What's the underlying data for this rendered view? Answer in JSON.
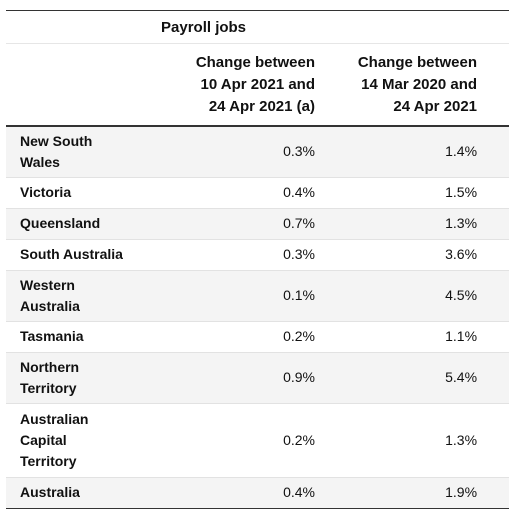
{
  "table": {
    "spanner": "Payroll jobs",
    "columns": [
      {
        "lines": [
          "Change between",
          "10 Apr 2021 and",
          "24 Apr 2021 (a)"
        ]
      },
      {
        "lines": [
          "Change between",
          "14 Mar 2020 and",
          "24 Apr 2021"
        ]
      }
    ],
    "rows": [
      {
        "state_lines": [
          "New South",
          "Wales"
        ],
        "v1": "0.3%",
        "v2": "1.4%"
      },
      {
        "state_lines": [
          "Victoria"
        ],
        "v1": "0.4%",
        "v2": "1.5%"
      },
      {
        "state_lines": [
          "Queensland"
        ],
        "v1": "0.7%",
        "v2": "1.3%"
      },
      {
        "state_lines": [
          "South Australia"
        ],
        "v1": "0.3%",
        "v2": "3.6%"
      },
      {
        "state_lines": [
          "Western",
          "Australia"
        ],
        "v1": "0.1%",
        "v2": "4.5%"
      },
      {
        "state_lines": [
          "Tasmania"
        ],
        "v1": "0.2%",
        "v2": "1.1%"
      },
      {
        "state_lines": [
          "Northern",
          "Territory"
        ],
        "v1": "0.9%",
        "v2": "5.4%"
      },
      {
        "state_lines": [
          "Australian",
          "Capital",
          "Territory"
        ],
        "v1": "0.2%",
        "v2": "1.3%"
      },
      {
        "state_lines": [
          "Australia"
        ],
        "v1": "0.4%",
        "v2": "1.9%"
      }
    ]
  }
}
